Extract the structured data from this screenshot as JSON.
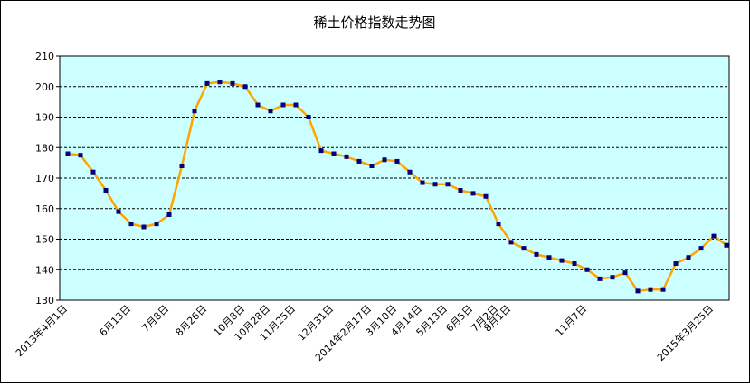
{
  "chart_data": {
    "type": "line",
    "title": "稀土价格指数走势图",
    "categories": [
      "2013年4月1日",
      null,
      null,
      null,
      null,
      "6月13日",
      null,
      null,
      "7月8日",
      null,
      null,
      "8月26日",
      null,
      null,
      "10月8日",
      null,
      "10月28日",
      null,
      "11月25日",
      null,
      null,
      "12月31日",
      null,
      null,
      "2014年2月17日",
      null,
      "3月10日",
      null,
      "4月14日",
      null,
      "5月13日",
      null,
      "6月5日",
      null,
      "7月2日",
      "8月1日",
      null,
      null,
      null,
      null,
      null,
      "11月7日",
      null,
      null,
      null,
      null,
      null,
      null,
      null,
      null,
      null,
      "2015年3月25日",
      null
    ],
    "series": [
      {
        "color": "#ffa500",
        "marker_color": "#000080",
        "values": [
          178,
          177.5,
          172,
          166,
          159,
          155,
          154,
          155,
          158,
          174,
          192,
          201,
          201.5,
          201,
          200,
          194,
          192,
          194,
          194,
          190,
          179,
          178,
          177,
          175.5,
          174,
          176,
          175.5,
          172,
          168.5,
          168,
          168,
          166,
          165,
          164,
          155,
          149,
          147,
          145,
          144,
          143,
          142,
          140,
          137,
          137.5,
          139,
          133,
          133.5,
          133.5,
          142,
          144,
          147,
          151,
          148
        ]
      }
    ],
    "ylim": [
      130,
      210
    ],
    "yticks": [
      130,
      140,
      150,
      160,
      170,
      180,
      190,
      200,
      210
    ],
    "grid": true,
    "plot_background": "#ccffff"
  }
}
